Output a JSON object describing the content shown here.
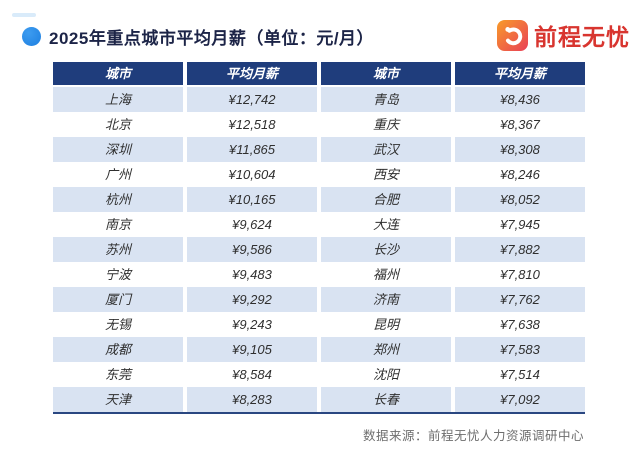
{
  "header": {
    "title": "2025年重点城市平均月薪（单位：元/月）",
    "bullet_color": "#1e88e5",
    "title_color": "#1c2447"
  },
  "logo": {
    "brand": "前程无忧",
    "icon": "hand-logo-icon",
    "brand_color": "#d8352f",
    "icon_gradient": [
      "#f89b29",
      "#e94057"
    ]
  },
  "table": {
    "header_bg": "#1f3d7c",
    "header_text_color": "#ffffff",
    "alt_row_bg": "#d9e3f2",
    "bottom_border_color": "#2a4781"
  },
  "footer": {
    "source": "数据来源：前程无忧人力资源调研中心"
  },
  "chart_data": {
    "type": "table",
    "title": "2025年重点城市平均月薪（单位：元/月）",
    "unit": "元/月",
    "columns": [
      "城市",
      "平均月薪",
      "城市",
      "平均月薪"
    ],
    "rows": [
      [
        "上海",
        "¥12,742",
        "青岛",
        "¥8,436"
      ],
      [
        "北京",
        "¥12,518",
        "重庆",
        "¥8,367"
      ],
      [
        "深圳",
        "¥11,865",
        "武汉",
        "¥8,308"
      ],
      [
        "广州",
        "¥10,604",
        "西安",
        "¥8,246"
      ],
      [
        "杭州",
        "¥10,165",
        "合肥",
        "¥8,052"
      ],
      [
        "南京",
        "¥9,624",
        "大连",
        "¥7,945"
      ],
      [
        "苏州",
        "¥9,586",
        "长沙",
        "¥7,882"
      ],
      [
        "宁波",
        "¥9,483",
        "福州",
        "¥7,810"
      ],
      [
        "厦门",
        "¥9,292",
        "济南",
        "¥7,762"
      ],
      [
        "无锡",
        "¥9,243",
        "昆明",
        "¥7,638"
      ],
      [
        "成都",
        "¥9,105",
        "郑州",
        "¥7,583"
      ],
      [
        "东莞",
        "¥8,584",
        "沈阳",
        "¥7,514"
      ],
      [
        "天津",
        "¥8,283",
        "长春",
        "¥7,092"
      ]
    ],
    "series": [
      {
        "name": "平均月薪(元/月)",
        "cities": [
          "上海",
          "北京",
          "深圳",
          "广州",
          "杭州",
          "南京",
          "苏州",
          "宁波",
          "厦门",
          "无锡",
          "成都",
          "东莞",
          "天津",
          "青岛",
          "重庆",
          "武汉",
          "西安",
          "合肥",
          "大连",
          "长沙",
          "福州",
          "济南",
          "昆明",
          "郑州",
          "沈阳",
          "长春"
        ],
        "values": [
          12742,
          12518,
          11865,
          10604,
          10165,
          9624,
          9586,
          9483,
          9292,
          9243,
          9105,
          8584,
          8283,
          8436,
          8367,
          8308,
          8246,
          8052,
          7945,
          7882,
          7810,
          7762,
          7638,
          7583,
          7514,
          7092
        ]
      }
    ]
  }
}
